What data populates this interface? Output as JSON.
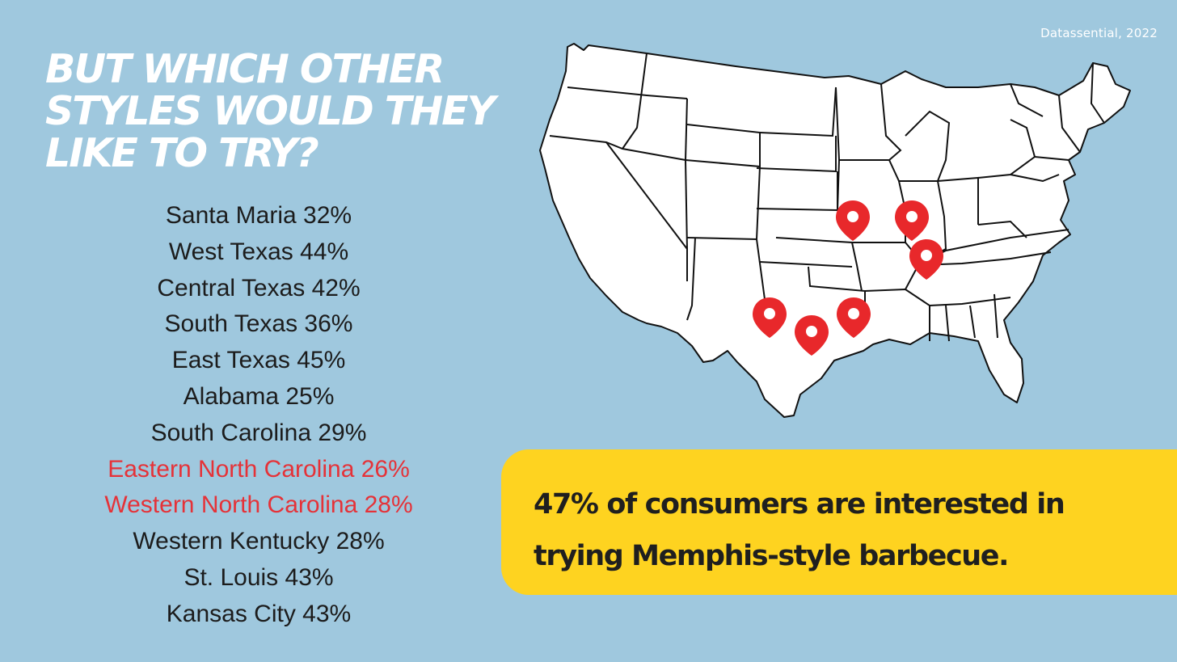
{
  "source": "Datassential, 2022",
  "headline": {
    "lines": [
      "BUT WHICH OTHER",
      "STYLES WOULD THEY",
      "LIKE TO TRY?"
    ]
  },
  "styles": [
    {
      "label": "Santa Maria 32%",
      "highlight": false
    },
    {
      "label": "West Texas 44%",
      "highlight": false
    },
    {
      "label": "Central Texas 42%",
      "highlight": false
    },
    {
      "label": "South Texas 36%",
      "highlight": false
    },
    {
      "label": "East Texas 45%",
      "highlight": false
    },
    {
      "label": "Alabama 25%",
      "highlight": false
    },
    {
      "label": "South Carolina 29%",
      "highlight": false
    },
    {
      "label": "Eastern North Carolina 26%",
      "highlight": true
    },
    {
      "label": "Western North Carolina 28%",
      "highlight": true
    },
    {
      "label": "Western Kentucky 28%",
      "highlight": false
    },
    {
      "label": "St. Louis 43%",
      "highlight": false
    },
    {
      "label": "Kansas City 43%",
      "highlight": false
    }
  ],
  "callout": {
    "line1": "47% of consumers are interested in",
    "line2": "trying Memphis-style barbecue."
  },
  "colors": {
    "background": "#9fc8de",
    "highlight": "#e53238",
    "callout": "#fed320",
    "pin": "#e8282b"
  }
}
